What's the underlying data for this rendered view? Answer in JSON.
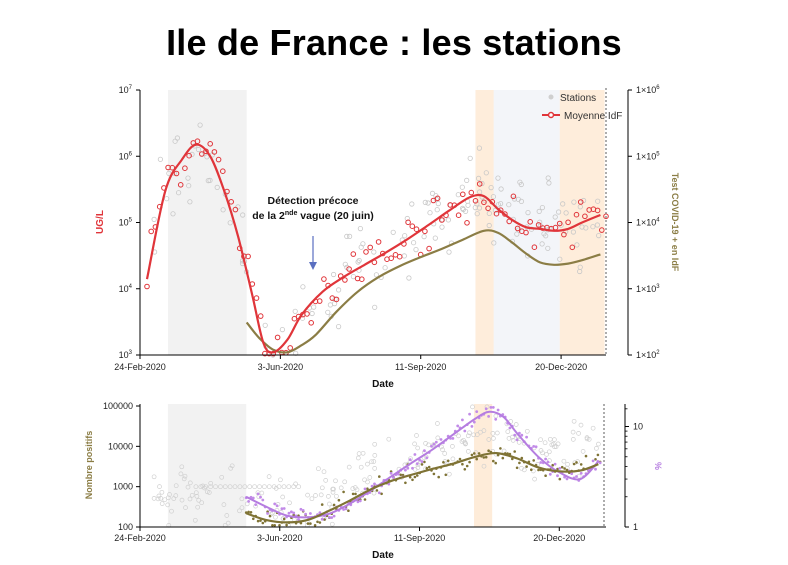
{
  "title": "Ile de France : les stations",
  "chart_data": [
    {
      "type": "scatter",
      "title": "",
      "xlabel": "Date",
      "ylabel": "UG/L",
      "ylabel_right": "Test COVID-19 + en IdF",
      "x_ticks": [
        "24-Feb-2020",
        "3-Jun-2020",
        "11-Sep-2020",
        "20-Dec-2020"
      ],
      "y_ticks": [
        "10^3",
        "10^4",
        "10^5",
        "10^6",
        "10^7"
      ],
      "y_ticks_right": [
        "1×10^2",
        "1×10^3",
        "1×10^4",
        "1×10^5",
        "1×10^6"
      ],
      "ylim": [
        1000,
        10000000
      ],
      "ylim_right": [
        100,
        1000000
      ],
      "legend": [
        "Stations",
        "Moyenne IdF"
      ],
      "legend_position": "top-right",
      "annotation": {
        "line1": "Détection précoce",
        "line2_pre": "de la 2",
        "line2_sup": "nde",
        "line2_post": " vague (20 juin)"
      },
      "shaded_periods": [
        {
          "color": "grey",
          "start_day": 20,
          "end_day": 76
        },
        {
          "color": "orange",
          "start_day": 239,
          "end_day": 252
        },
        {
          "color": "orange",
          "start_day": 299,
          "end_day": 331
        }
      ],
      "series": [
        {
          "name": "Moyenne IdF",
          "axis": "left",
          "color": "#e0353a",
          "x_day": [
            5,
            18,
            30,
            40,
            50,
            60,
            70,
            80,
            88,
            95,
            105,
            115,
            130,
            145,
            160,
            175,
            190,
            205,
            220,
            235,
            245,
            255,
            265,
            275,
            285,
            295,
            305,
            315,
            328
          ],
          "y": [
            14000,
            300000,
            900000,
            1500000,
            1000000,
            300000,
            60000,
            8000,
            1500,
            1100,
            1700,
            4000,
            9000,
            15000,
            23000,
            35000,
            55000,
            90000,
            150000,
            240000,
            250000,
            160000,
            110000,
            85000,
            80000,
            75000,
            80000,
            100000,
            130000
          ]
        },
        {
          "name": "Test COVID-19 + en IdF",
          "axis": "right",
          "color": "#8b7d45",
          "x_day": [
            76,
            85,
            95,
            105,
            115,
            125,
            140,
            155,
            170,
            185,
            200,
            215,
            230,
            245,
            255,
            265,
            275,
            285,
            295,
            305,
            315,
            328
          ],
          "y": [
            310,
            180,
            120,
            110,
            140,
            200,
            450,
            900,
            1500,
            2200,
            3000,
            4000,
            5500,
            7500,
            7000,
            5000,
            3400,
            2500,
            2300,
            2400,
            2700,
            3300
          ]
        }
      ]
    },
    {
      "type": "scatter",
      "xlabel": "Date",
      "ylabel": "Nombre positifs",
      "ylabel_right": "%",
      "x_ticks": [
        "24-Feb-2020",
        "3-Jun-2020",
        "11-Sep-2020",
        "20-Dec-2020"
      ],
      "y_ticks": [
        "100",
        "1000",
        "10000",
        "100000"
      ],
      "y_ticks_right": [
        "1",
        "10"
      ],
      "ylim": [
        100,
        100000
      ],
      "ylim_right": [
        1,
        16
      ],
      "shaded_periods": [
        {
          "color": "grey",
          "start_day": 20,
          "end_day": 76
        },
        {
          "color": "orange",
          "start_day": 239,
          "end_day": 252
        }
      ],
      "series": [
        {
          "name": "Nombre positifs (moyenne)",
          "axis": "left",
          "color": "#7f7335",
          "x_day": [
            76,
            90,
            105,
            120,
            135,
            150,
            165,
            180,
            195,
            210,
            225,
            240,
            255,
            270,
            285,
            300,
            315,
            328
          ],
          "y": [
            220,
            150,
            130,
            150,
            250,
            450,
            850,
            1400,
            2000,
            2800,
            3800,
            5500,
            6800,
            5000,
            3000,
            2400,
            2500,
            3600
          ]
        },
        {
          "name": "% positifs",
          "axis": "right",
          "color": "#b57de0",
          "x_day": [
            76,
            90,
            105,
            120,
            135,
            150,
            165,
            180,
            195,
            210,
            225,
            240,
            250,
            260,
            270,
            285,
            300,
            315,
            328
          ],
          "y": [
            2.0,
            1.6,
            1.3,
            1.25,
            1.35,
            1.7,
            2.3,
            3.2,
            4.4,
            6.0,
            8.5,
            12.0,
            14.0,
            12.5,
            8.5,
            5.0,
            3.5,
            3.0,
            4.5
          ]
        }
      ]
    }
  ]
}
